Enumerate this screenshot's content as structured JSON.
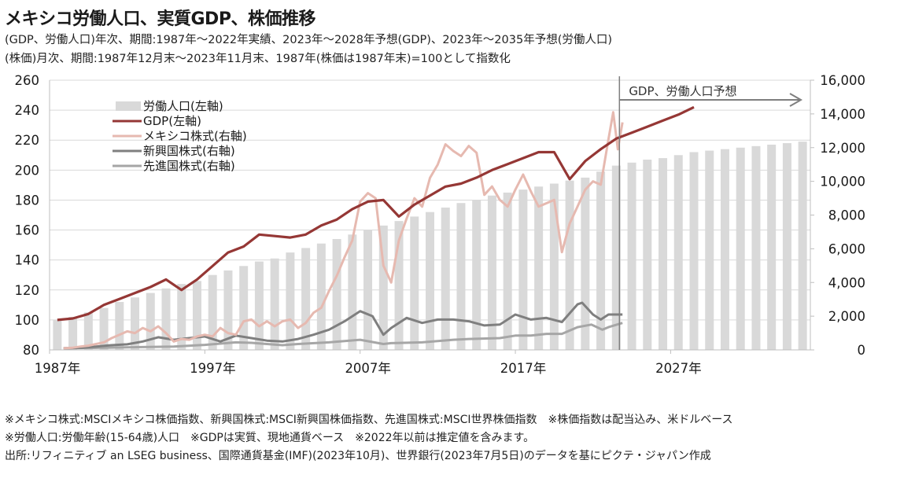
{
  "header": {
    "title": "メキシコ労働人口、実質GDP、株価推移",
    "subtitle1": "(GDP、労働人口)年次、期間:1987年〜2022年実績、2023年〜2028年予想(GDP)、2023年〜2035年予想(労働人口)",
    "subtitle2": "(株価)月次、期間:1987年12月末〜2023年11月末、1987年(株価は1987年末)=100として指数化"
  },
  "footnotes": {
    "line1": "※メキシコ株式:MSCIメキシコ株価指数、新興国株式:MSCI新興国株価指数、先進国株式:MSCI世界株価指数　※株価指数は配当込み、米ドルベース",
    "line2": "※労働人口:労働年齢(15-64歳)人口　※GDPは実質、現地通貨ベース　※2022年以前は推定値を含みます。",
    "line3": "出所:リフィニティブ an LSEG business、国際通貨基金(IMF)(2023年10月)、世界銀行(2023年7月5日)のデータを基にピクテ・ジャパン作成"
  },
  "chart_data": {
    "type": "bar+line",
    "title": "メキシコ労働人口、実質GDP、株価推移",
    "x_tick_labels": [
      "1987年",
      "1997年",
      "2007年",
      "2017年",
      "2027年"
    ],
    "x_range": [
      1987,
      2036
    ],
    "y_left": {
      "ticks": [
        "80",
        "100",
        "120",
        "140",
        "160",
        "180",
        "200",
        "220",
        "240",
        "260"
      ],
      "range": [
        80,
        260
      ]
    },
    "y_right": {
      "ticks": [
        "0",
        "2,000",
        "4,000",
        "6,000",
        "8,000",
        "10,000",
        "12,000",
        "14,000",
        "16,000"
      ],
      "range": [
        0,
        16000
      ]
    },
    "grid": true,
    "legend_position": "top-left",
    "annotation": {
      "text": "GDP、労働人口予想",
      "start_year": 2023
    },
    "series": [
      {
        "name": "労働人口(左軸)",
        "kind": "bar",
        "axis": "left",
        "color": "#d9d9d9",
        "years": [
          1987,
          1988,
          1989,
          1990,
          1991,
          1992,
          1993,
          1994,
          1995,
          1996,
          1997,
          1998,
          1999,
          2000,
          2001,
          2002,
          2003,
          2004,
          2005,
          2006,
          2007,
          2008,
          2009,
          2010,
          2011,
          2012,
          2013,
          2014,
          2015,
          2016,
          2017,
          2018,
          2019,
          2020,
          2021,
          2022,
          2023,
          2024,
          2025,
          2026,
          2027,
          2028,
          2029,
          2030,
          2031,
          2032,
          2033,
          2034,
          2035
        ],
        "values": [
          100,
          102,
          105,
          108,
          112,
          115,
          118,
          121,
          124,
          126,
          130,
          133,
          136,
          139,
          141,
          145,
          148,
          151,
          154,
          157,
          160,
          163,
          166,
          169,
          172,
          175,
          178,
          180,
          183,
          185,
          187,
          189,
          191,
          193,
          195,
          199,
          203,
          205,
          207,
          208,
          210,
          212,
          213,
          214,
          215,
          216,
          217,
          218,
          219
        ]
      },
      {
        "name": "GDP(左軸)",
        "kind": "line",
        "axis": "left",
        "color": "#953735",
        "years": [
          1987,
          1988,
          1989,
          1990,
          1991,
          1992,
          1993,
          1994,
          1995,
          1996,
          1997,
          1998,
          1999,
          2000,
          2001,
          2002,
          2003,
          2004,
          2005,
          2006,
          2007,
          2008,
          2009,
          2010,
          2011,
          2012,
          2013,
          2014,
          2015,
          2016,
          2017,
          2018,
          2019,
          2020,
          2021,
          2022,
          2023,
          2024,
          2025,
          2026,
          2027,
          2028
        ],
        "values": [
          100,
          101,
          104,
          110,
          114,
          118,
          122,
          127,
          120,
          127,
          136,
          145,
          149,
          157,
          156,
          155,
          157,
          163,
          167,
          174,
          179,
          180,
          169,
          177,
          183,
          189,
          191,
          195,
          200,
          204,
          208,
          212,
          212,
          194,
          206,
          214,
          221,
          225,
          229,
          233,
          237,
          242
        ]
      },
      {
        "name": "メキシコ株式(右軸)",
        "kind": "line",
        "axis": "right",
        "color": "#e6b9b0",
        "years": [
          1987.9,
          1988.5,
          1989,
          1989.5,
          1990,
          1990.5,
          1991,
          1991.5,
          1992,
          1992.5,
          1993,
          1993.5,
          1994,
          1994.5,
          1995,
          1995.5,
          1996,
          1996.5,
          1997,
          1997.5,
          1998,
          1998.5,
          1999,
          1999.5,
          2000,
          2000.5,
          2001,
          2001.5,
          2002,
          2002.5,
          2003,
          2003.5,
          2004,
          2004.5,
          2005,
          2005.5,
          2006,
          2006.5,
          2007,
          2007.5,
          2008,
          2008.5,
          2009,
          2009.5,
          2010,
          2010.5,
          2011,
          2011.5,
          2012,
          2012.5,
          2013,
          2013.5,
          2014,
          2014.5,
          2015,
          2015.5,
          2016,
          2016.5,
          2017,
          2017.5,
          2018,
          2018.5,
          2019,
          2019.5,
          2020,
          2020.5,
          2021,
          2021.5,
          2022,
          2022.5,
          2023,
          2023.3,
          2023.6,
          2023.9
        ],
        "values": [
          100,
          130,
          200,
          250,
          350,
          450,
          700,
          900,
          1100,
          1000,
          1300,
          1100,
          1400,
          1000,
          500,
          650,
          600,
          800,
          900,
          800,
          1300,
          1000,
          900,
          1700,
          1800,
          1400,
          1700,
          1400,
          1700,
          1800,
          1300,
          1600,
          2200,
          2500,
          3500,
          4400,
          5500,
          6500,
          8800,
          9300,
          9000,
          5000,
          4000,
          6500,
          7800,
          9000,
          8500,
          10200,
          11000,
          12200,
          11800,
          11500,
          12100,
          11700,
          9200,
          9700,
          8900,
          8500,
          9500,
          10400,
          9400,
          8500,
          8700,
          8900,
          5800,
          7500,
          8500,
          9500,
          10000,
          9800,
          12500,
          14100,
          11900,
          13500
        ]
      },
      {
        "name": "新興国株式(右軸)",
        "kind": "line",
        "axis": "right",
        "color": "#7f7f7f",
        "years": [
          1987.9,
          1989,
          1990,
          1991,
          1992,
          1993,
          1994,
          1995,
          1996,
          1997,
          1998,
          1999,
          2000,
          2001,
          2002,
          2003,
          2004,
          2005,
          2006,
          2007,
          2007.8,
          2008.5,
          2009,
          2010,
          2011,
          2012,
          2013,
          2014,
          2015,
          2016,
          2017,
          2018,
          2019,
          2020,
          2021,
          2021.3,
          2022,
          2022.5,
          2023,
          2023.9
        ],
        "values": [
          100,
          120,
          200,
          280,
          330,
          500,
          750,
          600,
          700,
          800,
          500,
          850,
          700,
          550,
          500,
          650,
          900,
          1200,
          1700,
          2300,
          2000,
          900,
          1300,
          1900,
          1600,
          1800,
          1800,
          1700,
          1450,
          1500,
          2100,
          1800,
          1900,
          1650,
          2700,
          2800,
          2100,
          1800,
          2100,
          2100
        ]
      },
      {
        "name": "先進国株式(右軸)",
        "kind": "line",
        "axis": "right",
        "color": "#a6a6a6",
        "years": [
          1987.9,
          1990,
          1993,
          1995,
          1997,
          1999,
          2000,
          2002,
          2003,
          2005,
          2007,
          2008.5,
          2009,
          2011,
          2013,
          2014,
          2016,
          2017,
          2018,
          2019,
          2020,
          2021,
          2021.9,
          2022.6,
          2023,
          2023.9
        ],
        "values": [
          100,
          120,
          170,
          200,
          300,
          450,
          420,
          280,
          350,
          450,
          600,
          350,
          400,
          450,
          600,
          650,
          700,
          850,
          850,
          950,
          950,
          1350,
          1500,
          1200,
          1350,
          1600
        ]
      }
    ]
  }
}
